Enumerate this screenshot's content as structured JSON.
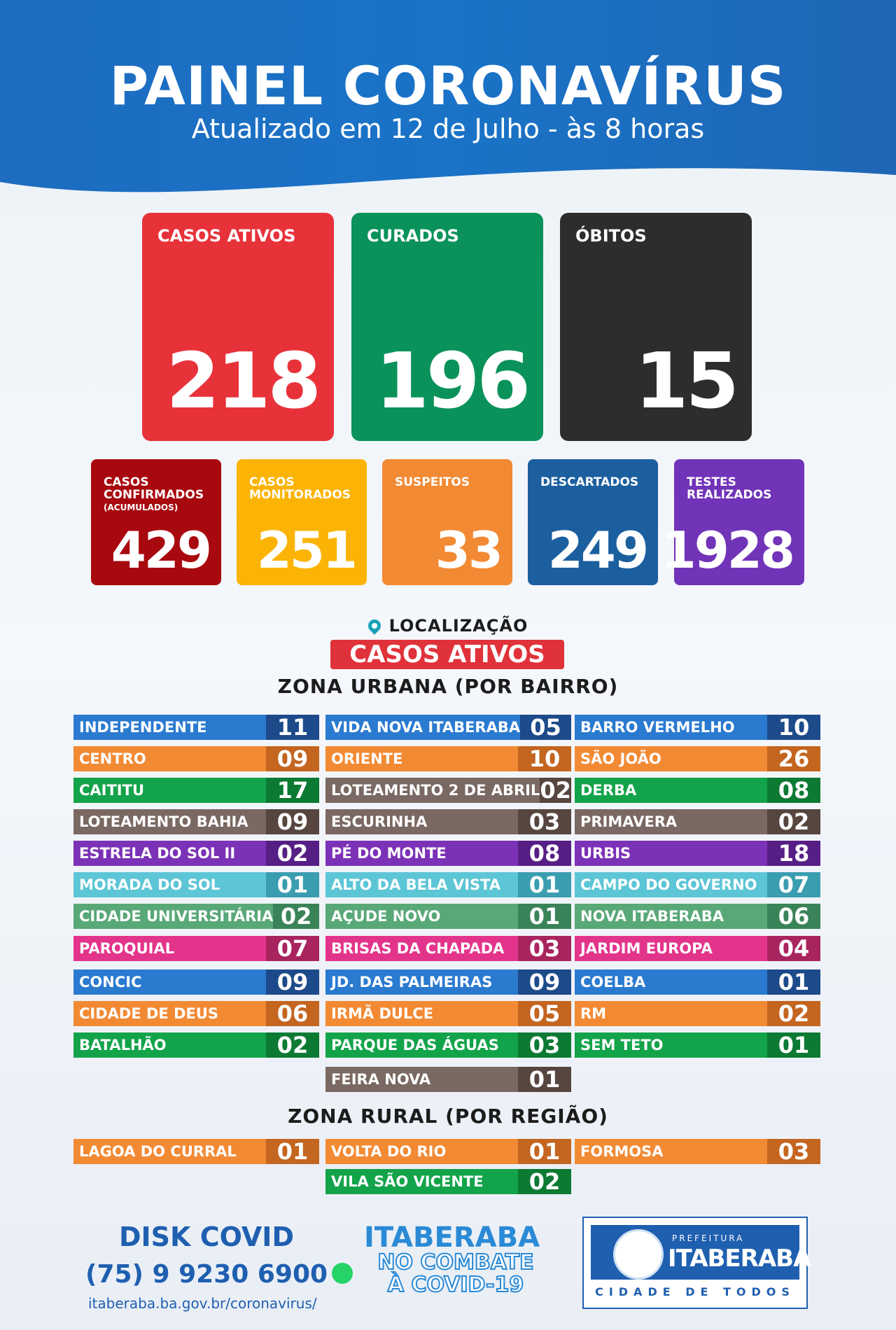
{
  "title": "PAINEL CORONAVÍRUS",
  "subtitle": "Atualizado em 12 de Julho - às 8 horas",
  "main_stats": [
    {
      "label": "CASOS ATIVOS",
      "value": "218",
      "color": "#e8323a"
    },
    {
      "label": "CURADOS",
      "value": "196",
      "color": "#0a925a"
    },
    {
      "label": "ÓBITOS",
      "value": "15",
      "color": "#2e2d2e"
    }
  ],
  "secondary_stats": [
    {
      "label": "CASOS CONFIRMADOS",
      "sublabel": "(ACUMULADOS)",
      "value": "429",
      "color": "#a8090f"
    },
    {
      "label": "CASOS MONITORADOS",
      "sublabel": "",
      "value": "251",
      "color": "#fbb406"
    },
    {
      "label": "SUSPEITOS",
      "sublabel": "",
      "value": "33",
      "color": "#f28a34"
    },
    {
      "label": "DESCARTADOS",
      "sublabel": "",
      "value": "249",
      "color": "#1c5f9f"
    },
    {
      "label": "TESTES REALIZADOS",
      "sublabel": "",
      "value": "1928",
      "color": "#7133b8"
    }
  ],
  "location_label": "LOCALIZAÇÃO",
  "active_badge": "CASOS ATIVOS",
  "urban_title": "ZONA URBANA (POR BAIRRO)",
  "rural_title": "ZONA RURAL (POR REGIÃO)",
  "urban": [
    [
      {
        "name": "INDEPENDENTE",
        "value": "11",
        "color": "#2a7ad0",
        "dark": "#1d4a8a"
      },
      {
        "name": "CENTRO",
        "value": "09",
        "color": "#f28a34",
        "dark": "#c46520"
      },
      {
        "name": "CAITITU",
        "value": "17",
        "color": "#13a34a",
        "dark": "#0c7a33"
      },
      {
        "name": "LOTEAMENTO BAHIA",
        "value": "09",
        "color": "#7a6862",
        "dark": "#56463f"
      },
      {
        "name": "ESTRELA DO SOL II",
        "value": "02",
        "color": "#7b32b6",
        "dark": "#571f85"
      },
      {
        "name": "MORADA DO SOL",
        "value": "01",
        "color": "#5cc5d6",
        "dark": "#3a9db0"
      },
      {
        "name": "CIDADE UNIVERSITÁRIA",
        "value": "02",
        "color": "#59a878",
        "dark": "#3a8358"
      },
      {
        "name": "PAROQUIAL",
        "value": "07",
        "color": "#e3348b",
        "dark": "#a8245f"
      },
      {
        "name": "CONCIC",
        "value": "09",
        "color": "#2a7ad0",
        "dark": "#1d4a8a"
      },
      {
        "name": "CIDADE DE DEUS",
        "value": "06",
        "color": "#f28a34",
        "dark": "#c46520"
      },
      {
        "name": "BATALHÃO",
        "value": "02",
        "color": "#13a34a",
        "dark": "#0c7a33"
      }
    ],
    [
      {
        "name": "VIDA NOVA ITABERABA",
        "value": "05",
        "color": "#2a7ad0",
        "dark": "#1d4a8a"
      },
      {
        "name": "ORIENTE",
        "value": "10",
        "color": "#f28a34",
        "dark": "#c46520"
      },
      {
        "name": "LOTEAMENTO 2 DE ABRIL",
        "value": "02",
        "color": "#7a6862",
        "dark": "#56463f"
      },
      {
        "name": "ESCURINHA",
        "value": "03",
        "color": "#7a6862",
        "dark": "#56463f"
      },
      {
        "name": "PÉ DO MONTE",
        "value": "08",
        "color": "#7b32b6",
        "dark": "#571f85"
      },
      {
        "name": "ALTO DA BELA VISTA",
        "value": "01",
        "color": "#5cc5d6",
        "dark": "#3a9db0"
      },
      {
        "name": "AÇUDE NOVO",
        "value": "01",
        "color": "#59a878",
        "dark": "#3a8358"
      },
      {
        "name": "BRISAS DA CHAPADA",
        "value": "03",
        "color": "#e3348b",
        "dark": "#a8245f"
      },
      {
        "name": "JD. DAS PALMEIRAS",
        "value": "09",
        "color": "#2a7ad0",
        "dark": "#1d4a8a"
      },
      {
        "name": "IRMÃ DULCE",
        "value": "05",
        "color": "#f28a34",
        "dark": "#c46520"
      },
      {
        "name": "PARQUE DAS ÁGUAS",
        "value": "03",
        "color": "#13a34a",
        "dark": "#0c7a33"
      },
      {
        "name": "FEIRA NOVA",
        "value": "01",
        "color": "#7a6862",
        "dark": "#56463f"
      }
    ],
    [
      {
        "name": "BARRO VERMELHO",
        "value": "10",
        "color": "#2a7ad0",
        "dark": "#1d4a8a"
      },
      {
        "name": "SÃO JOÃO",
        "value": "26",
        "color": "#f28a34",
        "dark": "#c46520"
      },
      {
        "name": "DERBA",
        "value": "08",
        "color": "#13a34a",
        "dark": "#0c7a33"
      },
      {
        "name": "PRIMAVERA",
        "value": "02",
        "color": "#7a6862",
        "dark": "#56463f"
      },
      {
        "name": "URBIS",
        "value": "18",
        "color": "#7b32b6",
        "dark": "#571f85"
      },
      {
        "name": "CAMPO DO GOVERNO",
        "value": "07",
        "color": "#5cc5d6",
        "dark": "#3a9db0"
      },
      {
        "name": "NOVA ITABERABA",
        "value": "06",
        "color": "#59a878",
        "dark": "#3a8358"
      },
      {
        "name": "JARDIM EUROPA",
        "value": "04",
        "color": "#e3348b",
        "dark": "#a8245f"
      },
      {
        "name": "COELBA",
        "value": "01",
        "color": "#2a7ad0",
        "dark": "#1d4a8a"
      },
      {
        "name": "RM",
        "value": "02",
        "color": "#f28a34",
        "dark": "#c46520"
      },
      {
        "name": "SEM TETO",
        "value": "01",
        "color": "#13a34a",
        "dark": "#0c7a33"
      }
    ]
  ],
  "rural": [
    [
      {
        "name": "LAGOA DO CURRAL",
        "value": "01",
        "color": "#f28a34",
        "dark": "#c46520"
      }
    ],
    [
      {
        "name": "VOLTA DO RIO",
        "value": "01",
        "color": "#f28a34",
        "dark": "#c46520"
      },
      {
        "name": "VILA SÃO VICENTE",
        "value": "02",
        "color": "#13a34a",
        "dark": "#0c7a33"
      }
    ],
    [
      {
        "name": "FORMOSA",
        "value": "03",
        "color": "#f28a34",
        "dark": "#c46520"
      }
    ]
  ],
  "footer": {
    "disk": "DISK COVID",
    "phone": "(75) 9 9230 6900",
    "url": "itaberaba.ba.gov.br/coronavirus/",
    "slogan_top": "ITABERABA",
    "slogan_bottom": "NO COMBATE À COVID-19",
    "logo_pref": "PREFEITURA",
    "logo_city": "ITABERABA",
    "logo_tag": "CIDADE DE TODOS",
    "whatsapp_icon": "whatsapp-icon"
  }
}
